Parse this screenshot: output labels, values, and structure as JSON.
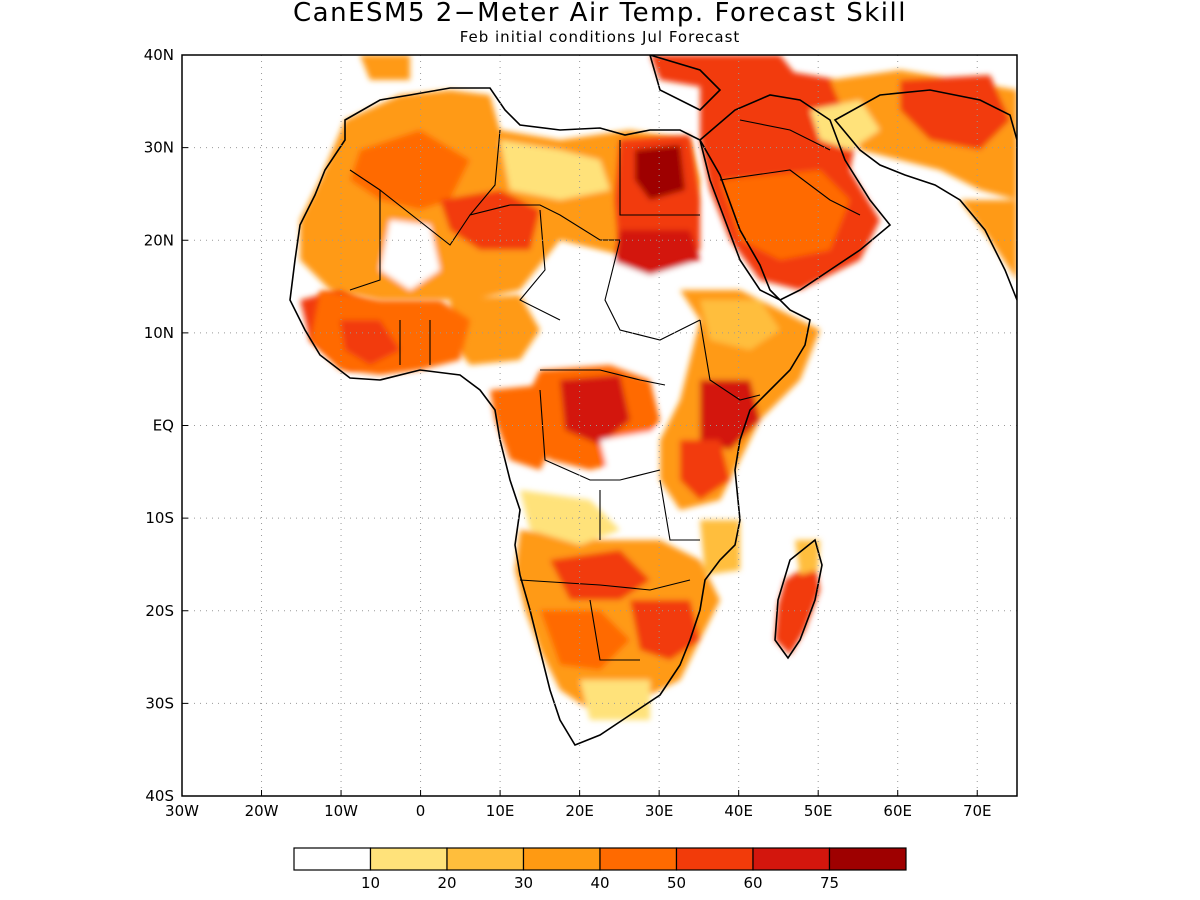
{
  "title": "CanESM5 2−Meter Air Temp. Forecast Skill",
  "subtitle": "Feb initial conditions  Jul Forecast",
  "map": {
    "region": "Africa and Middle East",
    "lon_range": [
      -30,
      75
    ],
    "lat_range": [
      -40,
      40
    ],
    "x_ticks": [
      "30W",
      "20W",
      "10W",
      "0",
      "10E",
      "20E",
      "30E",
      "40E",
      "50E",
      "60E",
      "70E"
    ],
    "y_ticks": [
      "40N",
      "30N",
      "20N",
      "10N",
      "EQ",
      "10S",
      "20S",
      "30S",
      "40S"
    ],
    "grid": "dotted"
  },
  "colorbar": {
    "colors": [
      "#ffffff",
      "#ffe27a",
      "#ffbe3c",
      "#ff9a12",
      "#ff6a00",
      "#f23b0a",
      "#d3160d",
      "#9e0000"
    ],
    "labels": [
      "10",
      "20",
      "30",
      "40",
      "50",
      "60",
      "75"
    ]
  },
  "chart_data": {
    "type": "heatmap",
    "title": "CanESM5 2−Meter Air Temp. Forecast Skill",
    "subtitle": "Feb initial conditions  Jul Forecast",
    "x_range": [
      -30,
      75
    ],
    "y_range": [
      -40,
      40
    ],
    "legend_bins": [
      10,
      20,
      30,
      40,
      50,
      60,
      75
    ]
  }
}
